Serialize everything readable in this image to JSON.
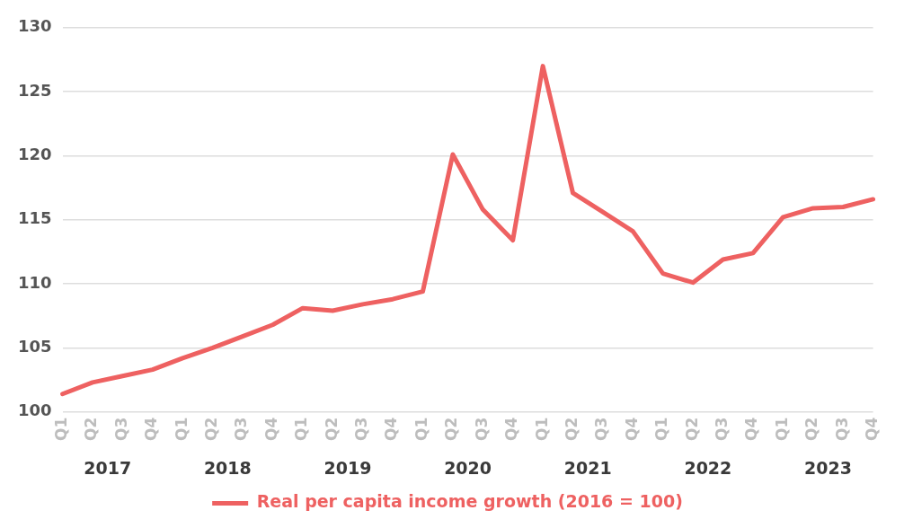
{
  "chart_data": {
    "type": "line",
    "categories": [
      "Q1",
      "Q2",
      "Q3",
      "Q4",
      "Q1",
      "Q2",
      "Q3",
      "Q4",
      "Q1",
      "Q2",
      "Q3",
      "Q4",
      "Q1",
      "Q2",
      "Q3",
      "Q4",
      "Q1",
      "Q2",
      "Q3",
      "Q4",
      "Q1",
      "Q2",
      "Q3",
      "Q4",
      "Q1",
      "Q2",
      "Q3",
      "Q4"
    ],
    "series": [
      {
        "name": "Real per capita income growth (2016 = 100)",
        "color": "#ee6161",
        "values": [
          101.4,
          102.3,
          102.8,
          103.3,
          104.2,
          105.0,
          105.9,
          106.8,
          108.1,
          107.9,
          108.4,
          108.8,
          109.4,
          120.1,
          115.8,
          113.4,
          127.0,
          117.1,
          115.6,
          114.1,
          110.8,
          110.1,
          111.9,
          112.4,
          115.2,
          115.9,
          116.0,
          116.6
        ]
      }
    ],
    "annotations": [
      "2017",
      "2018",
      "2019",
      "2020",
      "2021",
      "2022",
      "2023"
    ],
    "ylim": [
      100,
      130
    ],
    "yticks": [
      100,
      105,
      110,
      115,
      120,
      125,
      130
    ],
    "grid": "y",
    "legend": "bottom",
    "marker": "none",
    "line_style": "solid"
  }
}
